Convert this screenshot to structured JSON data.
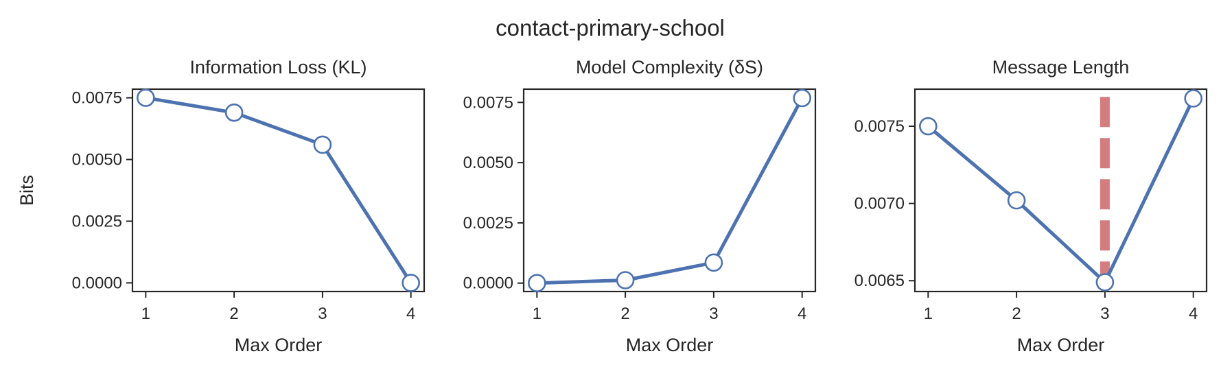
{
  "figure": {
    "title": "contact-primary-school"
  },
  "chart_data": [
    {
      "type": "line",
      "title": "Information Loss (KL)",
      "xlabel": "Max Order",
      "ylabel": "Bits",
      "x": [
        1,
        2,
        3,
        4
      ],
      "series": [
        {
          "values": [
            0.0075,
            0.0069,
            0.0056,
            0.0
          ]
        }
      ],
      "xticks": [
        "1",
        "2",
        "3",
        "4"
      ],
      "yticks": [
        "0.0000",
        "0.0025",
        "0.0050",
        "0.0075"
      ],
      "ytick_values": [
        0.0,
        0.0025,
        0.005,
        0.0075
      ],
      "ylim": [
        -0.00035,
        0.00785
      ],
      "color": "#4c72b0"
    },
    {
      "type": "line",
      "title": "Model Complexity (δS)",
      "xlabel": "Max Order",
      "ylabel": "",
      "x": [
        1,
        2,
        3,
        4
      ],
      "series": [
        {
          "values": [
            0.0,
            0.00012,
            0.00085,
            0.00768
          ]
        }
      ],
      "xticks": [
        "1",
        "2",
        "3",
        "4"
      ],
      "yticks": [
        "0.0000",
        "0.0025",
        "0.0050",
        "0.0075"
      ],
      "ytick_values": [
        0.0,
        0.0025,
        0.005,
        0.0075
      ],
      "ylim": [
        -0.00035,
        0.00805
      ],
      "color": "#4c72b0"
    },
    {
      "type": "line",
      "title": "Message Length",
      "xlabel": "Max Order",
      "ylabel": "",
      "x": [
        1,
        2,
        3,
        4
      ],
      "series": [
        {
          "values": [
            0.0075,
            0.00702,
            0.00649,
            0.00768
          ]
        }
      ],
      "xticks": [
        "1",
        "2",
        "3",
        "4"
      ],
      "yticks": [
        "0.0065",
        "0.0070",
        "0.0075"
      ],
      "ytick_values": [
        0.0065,
        0.007,
        0.0075
      ],
      "ylim": [
        0.00643,
        0.00774
      ],
      "vline_x": 3,
      "vline_ylim": [
        0.00649,
        0.00769
      ],
      "vline_color": "#d47c7e",
      "color": "#4c72b0"
    }
  ]
}
